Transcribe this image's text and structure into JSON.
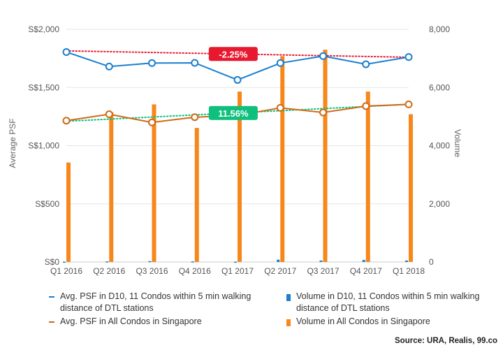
{
  "chart_data": {
    "type": "bar+line",
    "categories": [
      "Q1 2016",
      "Q2 2016",
      "Q3 2016",
      "Q4 2016",
      "Q1 2017",
      "Q2 2017",
      "Q3 2017",
      "Q4 2017",
      "Q1 2018"
    ],
    "y_left": {
      "label": "Average PSF",
      "ticks": [
        "S$0",
        "S$500",
        "S$1,000",
        "S$1,500",
        "S$2,000"
      ],
      "range": [
        0,
        2000
      ]
    },
    "y_right": {
      "label": "Volume",
      "ticks": [
        "0",
        "2,000",
        "4,000",
        "6,000",
        "8,000"
      ],
      "range": [
        0,
        8000
      ]
    },
    "series": [
      {
        "name": "Avg. PSF in D10, 11 Condos within 5 min walking distance of DTL stations",
        "type": "line",
        "axis": "left",
        "color": "#1a7fcf",
        "values": [
          1805,
          1680,
          1710,
          1712,
          1565,
          1710,
          1770,
          1700,
          1762
        ]
      },
      {
        "name": "Avg. PSF in All Condos in Singapore",
        "type": "line",
        "axis": "left",
        "color": "#cf6a17",
        "values": [
          1215,
          1270,
          1200,
          1245,
          1260,
          1325,
          1285,
          1340,
          1355
        ]
      },
      {
        "name": "Volume in D10, 11 Condos within 5 min walking distance of DTL stations",
        "type": "bar",
        "axis": "right",
        "color": "#1a7fcf",
        "values": [
          10,
          20,
          30,
          20,
          10,
          80,
          50,
          70,
          50
        ]
      },
      {
        "name": "Volume in All Condos in Singapore",
        "type": "bar",
        "axis": "right",
        "color": "#f7871b",
        "values": [
          3420,
          5150,
          5420,
          4610,
          5860,
          7080,
          7300,
          5860,
          5080
        ]
      }
    ],
    "trendlines": [
      {
        "series": 0,
        "start": 1815,
        "end": 1760,
        "color": "#e8182f",
        "label": "-2.25%"
      },
      {
        "series": 1,
        "start": 1210,
        "end": 1355,
        "color": "#0fbf7d",
        "label": "11.56%"
      }
    ],
    "grid": "horizontal"
  },
  "source": "Source: URA, Realis, 99.co"
}
